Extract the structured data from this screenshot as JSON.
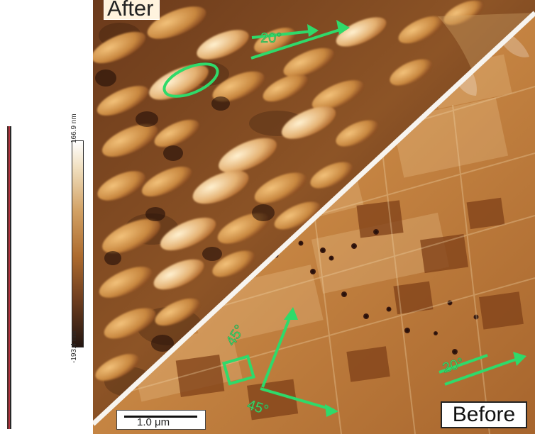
{
  "labels": {
    "after": "After",
    "before": "Before"
  },
  "colorbar": {
    "top_value": "166.9 nm",
    "bottom_value": "-193.4 nm"
  },
  "scale_bar": {
    "label": "1.0 μm"
  },
  "annotations": {
    "after_angle": "20°",
    "before_angle_left": "45°",
    "before_angle_bottom": "45°",
    "before_angle_right": "20°"
  },
  "colors": {
    "accent_green": "#2fda6a",
    "divider": "#f7f4ef",
    "surface_dark": "#2b140c",
    "surface_mid": "#a66a31",
    "surface_light": "#f5ddb0"
  }
}
